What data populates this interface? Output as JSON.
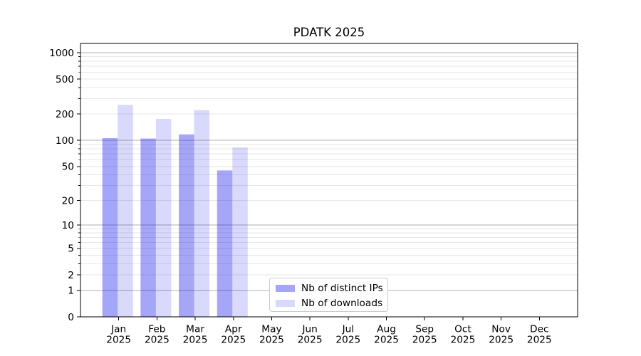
{
  "chart_data": {
    "type": "bar",
    "title": "PDATK 2025",
    "categories": [
      "Jan",
      "Feb",
      "Mar",
      "Apr",
      "May",
      "Jun",
      "Jul",
      "Aug",
      "Sep",
      "Oct",
      "Nov",
      "Dec"
    ],
    "x_sublabel": "2025",
    "series": [
      {
        "name": "Nb of distinct IPs",
        "color": "rgba(0,0,238,0.35)",
        "values": [
          106,
          105,
          117,
          45,
          0,
          0,
          0,
          0,
          0,
          0,
          0,
          0
        ]
      },
      {
        "name": "Nb of downloads",
        "color": "rgba(0,0,238,0.15)",
        "values": [
          255,
          176,
          221,
          83,
          0,
          0,
          0,
          0,
          0,
          0,
          0,
          0
        ]
      }
    ],
    "yticks": [
      0,
      1,
      2,
      5,
      10,
      20,
      50,
      100,
      200,
      500,
      1000
    ],
    "scale": "log1p",
    "ylim": [
      0,
      1270
    ],
    "grid": true,
    "grid_major": [
      1,
      10,
      100,
      1000
    ],
    "grid_major_color": "#b0b0b0",
    "grid_minor_color": "#e7e7e7",
    "legend_position": "lower center"
  }
}
